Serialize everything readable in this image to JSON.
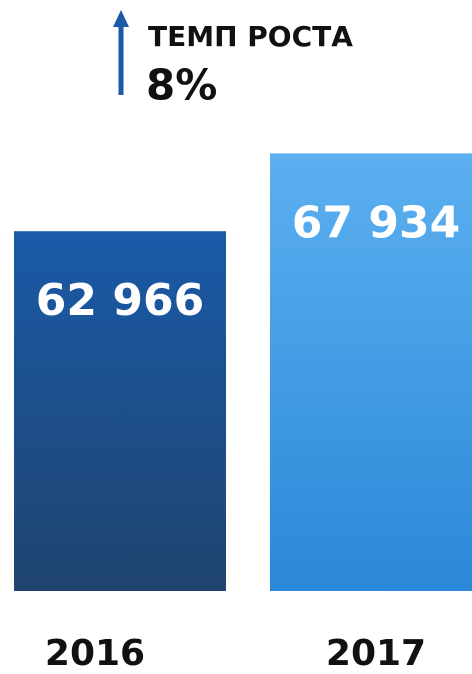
{
  "chart_data": {
    "type": "bar",
    "annotations": {
      "growth_title": "ТЕМП РОСТА",
      "growth_value": "8%"
    },
    "categories": [
      "2016",
      "2017"
    ],
    "values": [
      62966,
      67934
    ],
    "value_labels": [
      "62 966",
      "67 934"
    ],
    "colors": [
      "#1a5aa8",
      "#5cb0f0"
    ],
    "ylim": [
      40000,
      70000
    ]
  }
}
